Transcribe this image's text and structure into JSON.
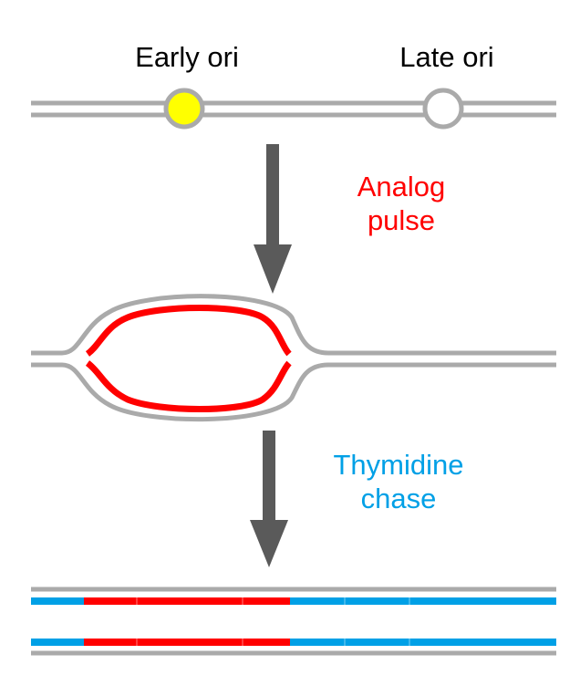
{
  "labels": {
    "early_ori": "Early ori",
    "late_ori": "Late ori",
    "pulse_line1": "Analog",
    "pulse_line2": "pulse",
    "chase_line1": "Thymidine",
    "chase_line2": "chase"
  },
  "colors": {
    "dna_strand": "#aaaaaa",
    "early_ori_fill": "#ffff00",
    "late_ori_fill": "#ffffff",
    "arrow": "#5a5a5a",
    "analog": "#ff0000",
    "thymidine": "#00a0e6",
    "text": "#000000"
  }
}
